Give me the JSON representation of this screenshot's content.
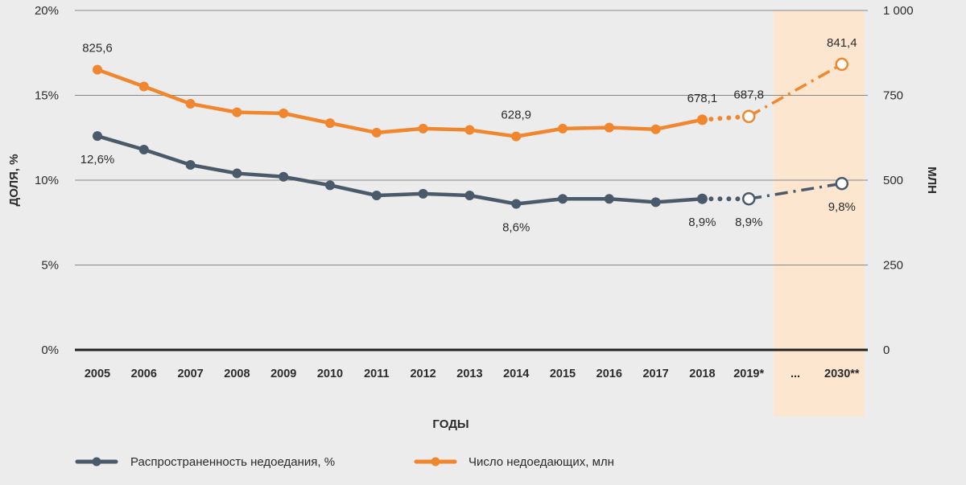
{
  "chart_data": {
    "type": "line",
    "title": "",
    "xlabel": "ГОДЫ",
    "ylabel_left": "ДОЛЯ, %",
    "ylabel_right": "МЛН",
    "categories": [
      "2005",
      "2006",
      "2007",
      "2008",
      "2009",
      "2010",
      "2011",
      "2012",
      "2013",
      "2014",
      "2015",
      "2016",
      "2017",
      "2018",
      "2019*",
      "...",
      "2030**"
    ],
    "y_left": {
      "range": [
        0,
        20
      ],
      "ticks": [
        0,
        5,
        10,
        15,
        20
      ],
      "tick_labels": [
        "0%",
        "5%",
        "10%",
        "15%",
        "20%"
      ]
    },
    "y_right": {
      "range": [
        0,
        1000
      ],
      "ticks": [
        0,
        250,
        500,
        750,
        1000
      ],
      "tick_labels": [
        "0",
        "250",
        "500",
        "750",
        "1 000"
      ]
    },
    "grid": true,
    "projection_band": {
      "from_category": "...",
      "to_category": "2030**",
      "color": "#fde6d0"
    },
    "series": [
      {
        "name": "Распространенность недоедания, %",
        "axis": "left",
        "color": "#4a5a6a",
        "points": [
          {
            "x": "2005",
            "y": 12.6,
            "label": "12,6%",
            "label_pos": "below"
          },
          {
            "x": "2006",
            "y": 11.8
          },
          {
            "x": "2007",
            "y": 10.9
          },
          {
            "x": "2008",
            "y": 10.4
          },
          {
            "x": "2009",
            "y": 10.2
          },
          {
            "x": "2010",
            "y": 9.7
          },
          {
            "x": "2011",
            "y": 9.1
          },
          {
            "x": "2012",
            "y": 9.2
          },
          {
            "x": "2013",
            "y": 9.1
          },
          {
            "x": "2014",
            "y": 8.6,
            "label": "8,6%",
            "label_pos": "below"
          },
          {
            "x": "2015",
            "y": 8.9
          },
          {
            "x": "2016",
            "y": 8.9
          },
          {
            "x": "2017",
            "y": 8.7
          },
          {
            "x": "2018",
            "y": 8.9,
            "label": "8,9%",
            "label_pos": "below"
          },
          {
            "x": "2019*",
            "y": 8.9,
            "label": "8,9%",
            "label_pos": "below",
            "projected": true
          },
          {
            "x": "2030**",
            "y": 9.8,
            "label": "9,8%",
            "label_pos": "below",
            "projected": true
          }
        ]
      },
      {
        "name": "Число недоедающих, млн",
        "axis": "right",
        "color": "#f0862e",
        "points": [
          {
            "x": "2005",
            "y": 825.6,
            "label": "825,6",
            "label_pos": "above"
          },
          {
            "x": "2006",
            "y": 776
          },
          {
            "x": "2007",
            "y": 725
          },
          {
            "x": "2008",
            "y": 700
          },
          {
            "x": "2009",
            "y": 697
          },
          {
            "x": "2010",
            "y": 668
          },
          {
            "x": "2011",
            "y": 640
          },
          {
            "x": "2012",
            "y": 652
          },
          {
            "x": "2013",
            "y": 648
          },
          {
            "x": "2014",
            "y": 628.9,
            "label": "628,9",
            "label_pos": "above"
          },
          {
            "x": "2015",
            "y": 652
          },
          {
            "x": "2016",
            "y": 655
          },
          {
            "x": "2017",
            "y": 650
          },
          {
            "x": "2018",
            "y": 678.1,
            "label": "678,1",
            "label_pos": "above"
          },
          {
            "x": "2019*",
            "y": 687.8,
            "label": "687,8",
            "label_pos": "above",
            "projected": true
          },
          {
            "x": "2030**",
            "y": 841.4,
            "label": "841,4",
            "label_pos": "above",
            "projected": true
          }
        ]
      }
    ],
    "legend": {
      "placement": "bottom",
      "items": [
        {
          "label": "Распространенность недоедания, %",
          "color": "#4a5a6a"
        },
        {
          "label": "Число недоедающих, млн",
          "color": "#f0862e"
        }
      ]
    }
  }
}
